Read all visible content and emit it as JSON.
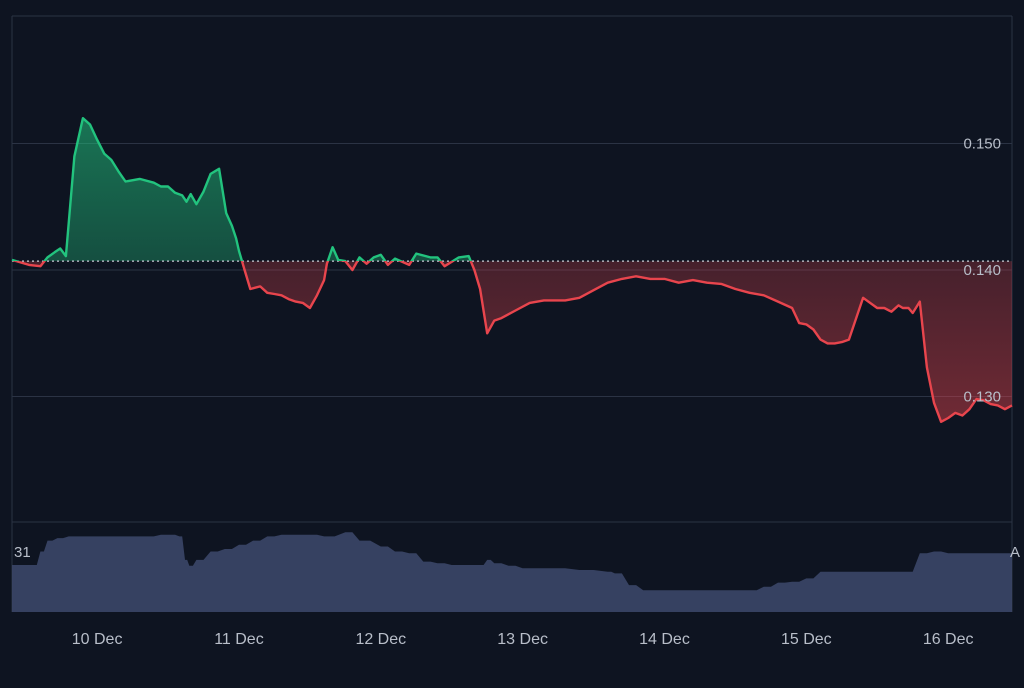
{
  "colors": {
    "background": "#0e1421",
    "grid": "#2b3344",
    "above_baseline": "#22c37e",
    "below_baseline": "#e8454d",
    "volume": "#3b4668",
    "axis_text": "#b8bec9",
    "baseline_dots": "#c9cfd8"
  },
  "volume_labels": {
    "left": "31",
    "right": "A"
  },
  "chart_data": [
    {
      "type": "line",
      "title": "",
      "xlabel": "",
      "ylabel": "",
      "baseline": 0.1407,
      "ylim": [
        0.12,
        0.16
      ],
      "y_ticks": [
        "0.150",
        "0.140",
        "0.130"
      ],
      "y_tick_values": [
        0.15,
        0.14,
        0.13
      ],
      "x_ticks": [
        "10 Dec",
        "11 Dec",
        "12 Dec",
        "13 Dec",
        "14 Dec",
        "15 Dec",
        "16 Dec"
      ],
      "x_tick_values": [
        10,
        11,
        12,
        13,
        14,
        15,
        16
      ],
      "xlim": [
        9.4,
        16.45
      ],
      "grid": true,
      "series": [
        {
          "x": [
            9.4,
            9.52,
            9.6,
            9.65,
            9.7,
            9.74,
            9.78,
            9.84,
            9.9,
            9.95,
            10.0,
            10.05,
            10.1,
            10.15,
            10.2,
            10.3,
            10.4,
            10.45,
            10.5,
            10.55,
            10.6,
            10.63,
            10.66,
            10.7,
            10.75,
            10.8,
            10.86,
            10.91,
            10.95,
            10.98,
            11.0,
            11.04,
            11.08,
            11.15,
            11.2,
            11.25,
            11.3,
            11.35,
            11.4,
            11.45,
            11.5,
            11.55,
            11.6,
            11.62,
            11.66,
            11.7,
            11.75,
            11.8,
            11.85,
            11.9,
            11.95,
            12.0,
            12.05,
            12.1,
            12.2,
            12.25,
            12.35,
            12.4,
            12.45,
            12.55,
            12.62,
            12.66,
            12.7,
            12.75,
            12.8,
            12.85,
            12.95,
            13.05,
            13.15,
            13.3,
            13.4,
            13.5,
            13.6,
            13.7,
            13.8,
            13.9,
            14.0,
            14.1,
            14.2,
            14.3,
            14.4,
            14.5,
            14.6,
            14.7,
            14.8,
            14.9,
            14.95,
            15.0,
            15.05,
            15.1,
            15.15,
            15.2,
            15.25,
            15.3,
            15.4,
            15.5,
            15.55,
            15.6,
            15.65,
            15.68,
            15.72,
            15.75,
            15.8,
            15.85,
            15.9,
            15.95,
            16.0,
            16.05,
            16.1,
            16.15,
            16.2,
            16.25,
            16.3,
            16.35,
            16.4,
            16.45
          ],
          "values": [
            0.1408,
            0.1404,
            0.1403,
            0.141,
            0.1414,
            0.1417,
            0.1411,
            0.149,
            0.152,
            0.1515,
            0.1503,
            0.1492,
            0.1487,
            0.1478,
            0.147,
            0.1472,
            0.1469,
            0.1466,
            0.1466,
            0.1461,
            0.1459,
            0.1454,
            0.146,
            0.1452,
            0.1462,
            0.1476,
            0.148,
            0.1445,
            0.1435,
            0.1425,
            0.1415,
            0.14,
            0.1385,
            0.1387,
            0.1382,
            0.1381,
            0.138,
            0.1377,
            0.1375,
            0.1374,
            0.137,
            0.138,
            0.1392,
            0.1405,
            0.1418,
            0.1408,
            0.1407,
            0.14,
            0.141,
            0.1405,
            0.141,
            0.1412,
            0.1404,
            0.1409,
            0.1404,
            0.1413,
            0.141,
            0.141,
            0.1403,
            0.141,
            0.1411,
            0.14,
            0.1385,
            0.135,
            0.136,
            0.1362,
            0.1368,
            0.1374,
            0.1376,
            0.1376,
            0.1378,
            0.1384,
            0.139,
            0.1393,
            0.1395,
            0.1393,
            0.1393,
            0.139,
            0.1392,
            0.139,
            0.1389,
            0.1385,
            0.1382,
            0.138,
            0.1375,
            0.137,
            0.1358,
            0.1357,
            0.1353,
            0.1345,
            0.1342,
            0.1342,
            0.1343,
            0.1345,
            0.1378,
            0.137,
            0.137,
            0.1367,
            0.1372,
            0.137,
            0.137,
            0.1366,
            0.1375,
            0.1323,
            0.1295,
            0.128,
            0.1283,
            0.1287,
            0.1285,
            0.129,
            0.1298,
            0.1297,
            0.1294,
            0.1293,
            0.129,
            0.1293
          ]
        }
      ]
    },
    {
      "type": "area",
      "title": "",
      "x": [
        9.4,
        9.55,
        9.6,
        9.65,
        9.72,
        9.8,
        9.9,
        10.0,
        10.1,
        10.2,
        10.35,
        10.45,
        10.52,
        10.58,
        10.62,
        10.65,
        10.7,
        10.8,
        10.9,
        11.0,
        11.1,
        11.2,
        11.3,
        11.4,
        11.5,
        11.6,
        11.75,
        11.85,
        12.0,
        12.1,
        12.2,
        12.3,
        12.4,
        12.5,
        12.6,
        12.7,
        12.75,
        12.8,
        12.9,
        13.0,
        13.2,
        13.4,
        13.6,
        13.65,
        13.75,
        13.85,
        14.0,
        14.2,
        14.4,
        14.5,
        14.6,
        14.7,
        14.8,
        14.9,
        15.0,
        15.1,
        15.2,
        15.3,
        15.4,
        15.55,
        15.7,
        15.8,
        15.9,
        16.0,
        16.1,
        16.2,
        16.3,
        16.45
      ],
      "values": [
        0.56,
        0.56,
        0.72,
        0.85,
        0.88,
        0.9,
        0.9,
        0.9,
        0.9,
        0.9,
        0.9,
        0.92,
        0.92,
        0.9,
        0.62,
        0.55,
        0.62,
        0.72,
        0.75,
        0.8,
        0.85,
        0.9,
        0.92,
        0.92,
        0.92,
        0.9,
        0.95,
        0.85,
        0.78,
        0.72,
        0.7,
        0.6,
        0.58,
        0.56,
        0.56,
        0.56,
        0.62,
        0.58,
        0.55,
        0.52,
        0.52,
        0.5,
        0.48,
        0.46,
        0.32,
        0.26,
        0.26,
        0.26,
        0.26,
        0.26,
        0.26,
        0.3,
        0.35,
        0.36,
        0.4,
        0.48,
        0.48,
        0.48,
        0.48,
        0.48,
        0.48,
        0.7,
        0.72,
        0.7,
        0.7,
        0.7,
        0.7,
        0.7
      ],
      "ylim": [
        0,
        1
      ]
    }
  ]
}
